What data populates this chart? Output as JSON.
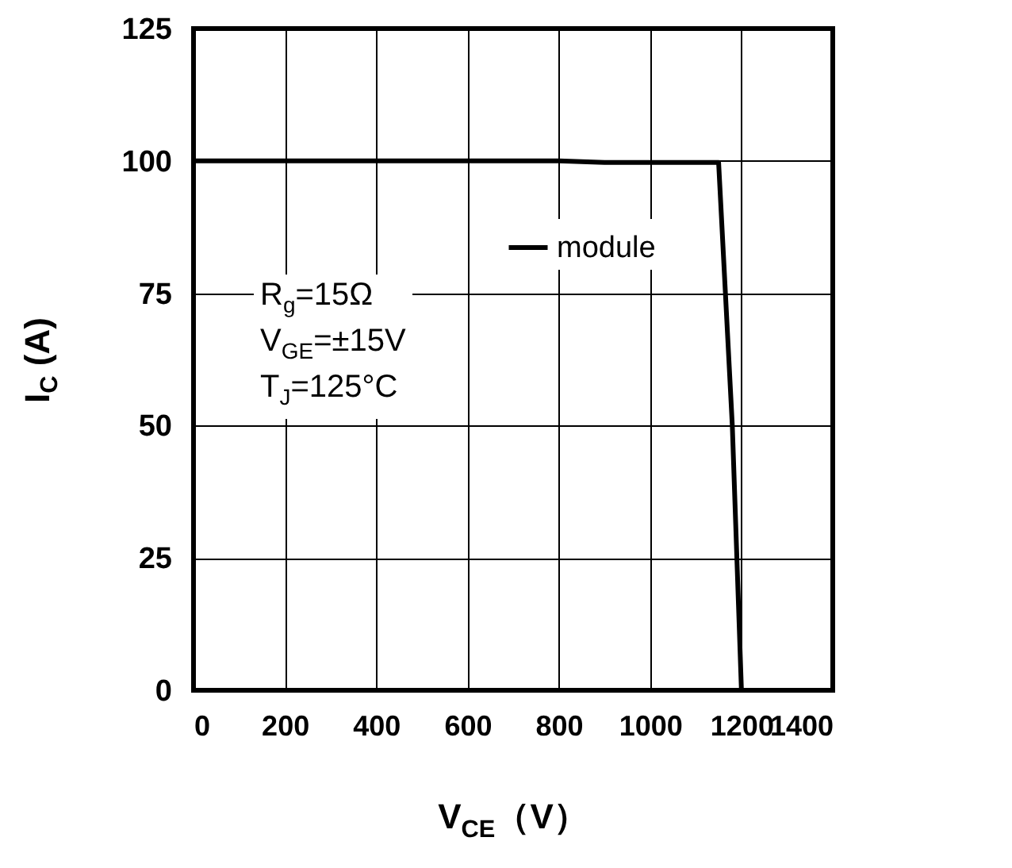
{
  "chart_data": {
    "type": "line",
    "xlabel": "V$_{CE}$（V）",
    "ylabel": "I$_{C}$ (A)",
    "xlim": [
      0,
      1400
    ],
    "xticks": [
      0,
      200,
      400,
      600,
      800,
      1000,
      1200,
      1400
    ],
    "ylim": [
      0,
      125
    ],
    "yticks": [
      0,
      25,
      50,
      75,
      100,
      125
    ],
    "series": [
      {
        "name": "module",
        "color": "#000000",
        "x": [
          0,
          800,
          900,
          1150,
          1180,
          1200
        ],
        "values": [
          100,
          100,
          99.7,
          99.7,
          50,
          0
        ]
      }
    ],
    "annotations": [
      "R$_{g}$=15Ω",
      "V$_{GE}$=±15V",
      "T$_{J}$=125°C"
    ],
    "grid": true,
    "legend": "top right",
    "marker": "none",
    "line_style": "solid"
  }
}
